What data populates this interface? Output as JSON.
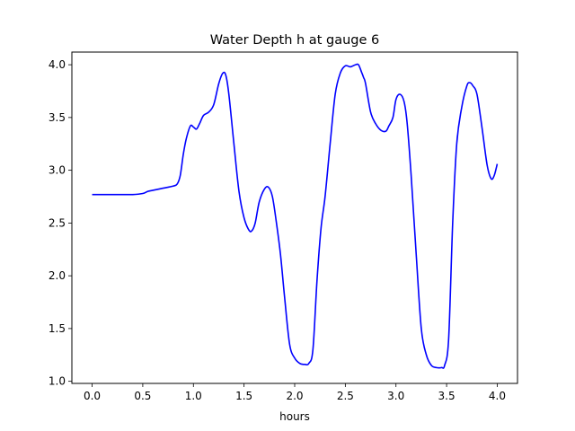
{
  "chart_data": {
    "type": "line",
    "title": "Water Depth h at gauge 6",
    "xlabel": "hours",
    "ylabel": "",
    "xlim": [
      -0.2,
      4.2
    ],
    "ylim": [
      0.98,
      4.12
    ],
    "xticks": [
      0.0,
      0.5,
      1.0,
      1.5,
      2.0,
      2.5,
      3.0,
      3.5,
      4.0
    ],
    "xtick_labels": [
      "0.0",
      "0.5",
      "1.0",
      "1.5",
      "2.0",
      "2.5",
      "3.0",
      "3.5",
      "4.0"
    ],
    "yticks": [
      1.0,
      1.5,
      2.0,
      2.5,
      3.0,
      3.5,
      4.0
    ],
    "ytick_labels": [
      "1.0",
      "1.5",
      "2.0",
      "2.5",
      "3.0",
      "3.5",
      "4.0"
    ],
    "grid": false,
    "line_color": "#0000ff",
    "series": [
      {
        "x": [
          0.0,
          0.2,
          0.4,
          0.5,
          0.55,
          0.6,
          0.7,
          0.8,
          0.84,
          0.87,
          0.9,
          0.93,
          0.97,
          1.0,
          1.03,
          1.06,
          1.1,
          1.15,
          1.2,
          1.25,
          1.29,
          1.32,
          1.35,
          1.4,
          1.45,
          1.5,
          1.55,
          1.58,
          1.61,
          1.65,
          1.7,
          1.74,
          1.78,
          1.82,
          1.86,
          1.9,
          1.95,
          2.0,
          2.05,
          2.1,
          2.14,
          2.18,
          2.22,
          2.26,
          2.3,
          2.35,
          2.4,
          2.45,
          2.5,
          2.55,
          2.6,
          2.63,
          2.66,
          2.68,
          2.7,
          2.75,
          2.8,
          2.85,
          2.9,
          2.93,
          2.97,
          3.0,
          3.04,
          3.08,
          3.11,
          3.15,
          3.2,
          3.25,
          3.3,
          3.35,
          3.4,
          3.45,
          3.48,
          3.52,
          3.56,
          3.6,
          3.65,
          3.7,
          3.73,
          3.76,
          3.8,
          3.85,
          3.9,
          3.94,
          3.97,
          4.0
        ],
        "y": [
          2.77,
          2.77,
          2.77,
          2.78,
          2.8,
          2.81,
          2.83,
          2.85,
          2.87,
          2.95,
          3.15,
          3.3,
          3.42,
          3.41,
          3.39,
          3.44,
          3.52,
          3.55,
          3.62,
          3.82,
          3.92,
          3.9,
          3.72,
          3.25,
          2.8,
          2.55,
          2.43,
          2.43,
          2.5,
          2.7,
          2.82,
          2.84,
          2.75,
          2.5,
          2.2,
          1.8,
          1.35,
          1.22,
          1.17,
          1.16,
          1.17,
          1.3,
          1.95,
          2.45,
          2.75,
          3.25,
          3.72,
          3.92,
          3.99,
          3.98,
          4.0,
          4.0,
          3.93,
          3.88,
          3.82,
          3.55,
          3.44,
          3.38,
          3.37,
          3.42,
          3.5,
          3.67,
          3.72,
          3.65,
          3.45,
          2.95,
          2.2,
          1.5,
          1.25,
          1.15,
          1.13,
          1.13,
          1.15,
          1.4,
          2.5,
          3.25,
          3.6,
          3.8,
          3.83,
          3.8,
          3.72,
          3.4,
          3.05,
          2.92,
          2.95,
          3.06
        ]
      }
    ]
  }
}
